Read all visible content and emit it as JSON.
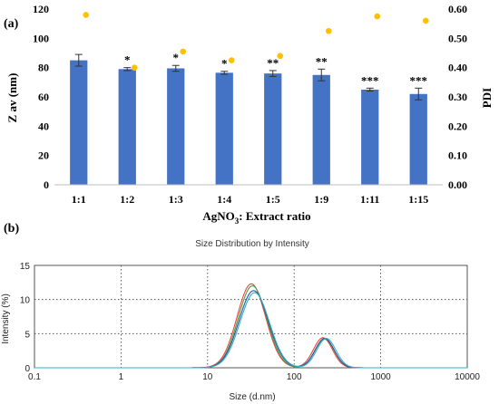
{
  "chart_data": [
    {
      "panel_label": "(a)",
      "type": "bar",
      "categories": [
        "1:1",
        "1:2",
        "1:3",
        "1:4",
        "1:5",
        "1:9",
        "1:11",
        "1:15"
      ],
      "series": [
        {
          "values": [
            85,
            79,
            79.5,
            76.5,
            76,
            75,
            65,
            62
          ],
          "errors": [
            4,
            1,
            2,
            1,
            2,
            4,
            1,
            4
          ],
          "color": "#4472C4"
        },
        {
          "values": [
            0.58,
            0.4,
            0.455,
            0.425,
            0.44,
            0.525,
            0.575,
            0.56
          ],
          "color": "#FFC000",
          "axis": "right"
        }
      ],
      "significance": [
        "",
        "*",
        "*",
        "*",
        "**",
        "**",
        "***",
        "***"
      ],
      "xlabel_parts": {
        "base": "AgNO",
        "sub": "3",
        "rest": ": Extract ratio"
      },
      "ylabel": "Z av (nm)",
      "y2label": "PDI",
      "ylim": [
        0,
        120
      ],
      "y2lim": [
        0,
        0.6
      ],
      "yticks": [
        "0",
        "20",
        "40",
        "60",
        "80",
        "100",
        "120"
      ],
      "y2ticks": [
        "0.00",
        "0.10",
        "0.20",
        "0.30",
        "0.40",
        "0.50",
        "0.60"
      ],
      "grid": false,
      "legend": "none"
    },
    {
      "panel_label": "(b)",
      "type": "line",
      "title": "Size Distribution by Intensity",
      "xlabel": "Size (d.nm)",
      "ylabel": "Intensity (%)",
      "xscale": "log",
      "xlim": [
        0.1,
        10000
      ],
      "ylim": [
        0,
        15
      ],
      "xticks": [
        "0.1",
        "1",
        "10",
        "100",
        "1000",
        "10000"
      ],
      "yticks": [
        "0",
        "5",
        "10",
        "15"
      ],
      "grid": true,
      "series": [
        {
          "color": "#E8473F",
          "peaks": [
            {
              "center": 32,
              "height": 12.3,
              "width": 0.165
            },
            {
              "center": 215,
              "height": 4.4,
              "width": 0.11
            }
          ]
        },
        {
          "color": "#4F9F3F",
          "peaks": [
            {
              "center": 33,
              "height": 12.0,
              "width": 0.165
            },
            {
              "center": 225,
              "height": 4.2,
              "width": 0.11
            }
          ]
        },
        {
          "color": "#2E4FA0",
          "peaks": [
            {
              "center": 34,
              "height": 11.3,
              "width": 0.17
            },
            {
              "center": 225,
              "height": 4.3,
              "width": 0.11
            }
          ]
        },
        {
          "color": "#2EB1C8",
          "peaks": [
            {
              "center": 35,
              "height": 11.0,
              "width": 0.17
            },
            {
              "center": 235,
              "height": 4.3,
              "width": 0.11
            }
          ]
        }
      ]
    }
  ]
}
